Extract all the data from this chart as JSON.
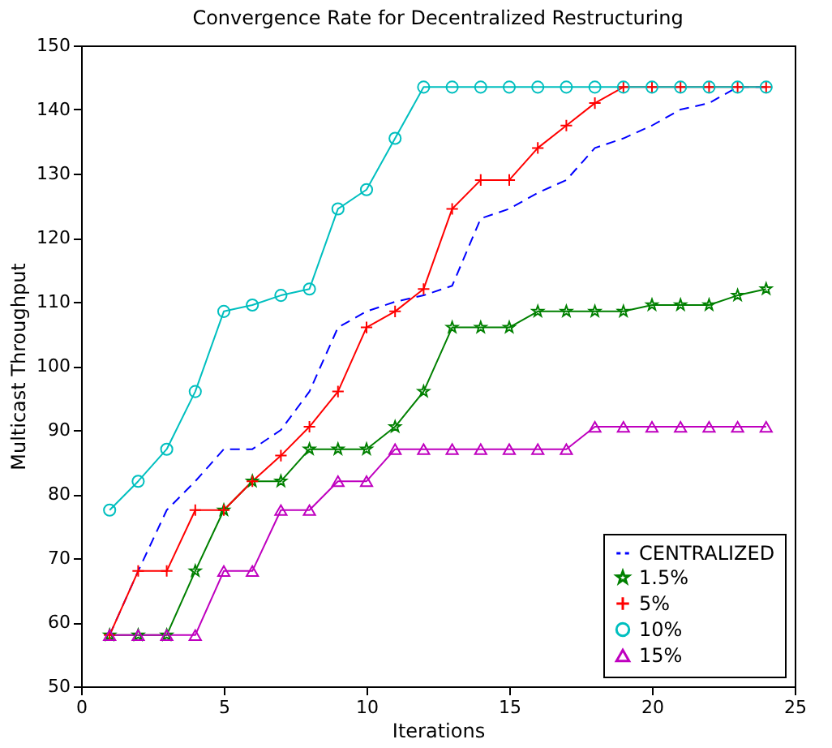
{
  "chart_data": {
    "type": "line",
    "title": "Convergence Rate for Decentralized Restructuring",
    "xlabel": "Iterations",
    "ylabel": "Multicast Throughput",
    "x": [
      1,
      2,
      3,
      4,
      5,
      6,
      7,
      8,
      9,
      10,
      11,
      12,
      13,
      14,
      15,
      16,
      17,
      18,
      19,
      20,
      21,
      22,
      23,
      24
    ],
    "series": [
      {
        "name": "CENTRALIZED",
        "color": "#0000ff",
        "line_style": "dashed",
        "marker": "none",
        "values": [
          58,
          68,
          77.5,
          82,
          87,
          87,
          90,
          96,
          106,
          108.5,
          110,
          111,
          112.5,
          123,
          124.5,
          127,
          129,
          134,
          135.5,
          137.5,
          140,
          141,
          143.5,
          143.5
        ]
      },
      {
        "name": "1.5%",
        "color": "#008000",
        "line_style": "solid",
        "marker": "star",
        "values": [
          58,
          58,
          58,
          68,
          77.5,
          82,
          82,
          87,
          87,
          87,
          90.5,
          96,
          106,
          106,
          106,
          108.5,
          108.5,
          108.5,
          108.5,
          109.5,
          109.5,
          109.5,
          111,
          112
        ]
      },
      {
        "name": "5%",
        "color": "#ff0000",
        "line_style": "solid",
        "marker": "cross",
        "values": [
          58,
          68,
          68,
          77.5,
          77.5,
          82,
          86,
          90.5,
          96,
          106,
          108.5,
          112,
          124.5,
          129,
          129,
          134,
          137.5,
          141,
          143.5,
          143.5,
          143.5,
          143.5,
          143.5,
          143.5
        ]
      },
      {
        "name": "10%",
        "color": "#00bfbf",
        "line_style": "solid",
        "marker": "circle",
        "values": [
          77.5,
          82,
          87,
          96,
          108.5,
          109.5,
          111,
          112,
          124.5,
          127.5,
          135.5,
          143.5,
          143.5,
          143.5,
          143.5,
          143.5,
          143.5,
          143.5,
          143.5,
          143.5,
          143.5,
          143.5,
          143.5,
          143.5
        ]
      },
      {
        "name": "15%",
        "color": "#bf00bf",
        "line_style": "solid",
        "marker": "triangle",
        "values": [
          58,
          58,
          58,
          58,
          68,
          68,
          77.5,
          77.5,
          82,
          82,
          87,
          87,
          87,
          87,
          87,
          87,
          87,
          90.5,
          90.5,
          90.5,
          90.5,
          90.5,
          90.5,
          90.5
        ]
      }
    ],
    "xlim": [
      0,
      25
    ],
    "xticks": [
      0,
      5,
      10,
      15,
      20,
      25
    ],
    "ylim": [
      50,
      150
    ],
    "yticks": [
      50,
      60,
      70,
      80,
      90,
      100,
      110,
      120,
      130,
      140,
      150
    ],
    "grid": false,
    "legend": "bottom right"
  }
}
